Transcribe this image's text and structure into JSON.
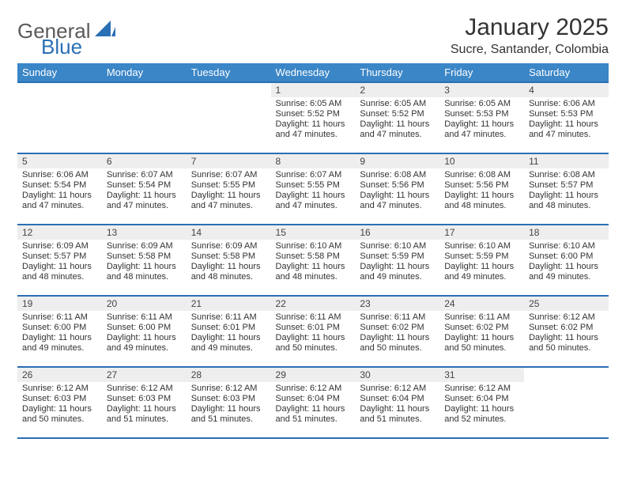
{
  "brand": {
    "part1": "General",
    "part2": "Blue"
  },
  "header": {
    "month_title": "January 2025",
    "location": "Sucre, Santander, Colombia"
  },
  "weekdays": [
    "Sunday",
    "Monday",
    "Tuesday",
    "Wednesday",
    "Thursday",
    "Friday",
    "Saturday"
  ],
  "colors": {
    "header_bg": "#3b86c7",
    "rule": "#2b6fb5",
    "daynum_bg": "#eeeeee",
    "brand_blue": "#2b6fb5",
    "brand_gray": "#5a5a5a"
  },
  "weeks": [
    [
      {
        "n": "",
        "sunrise": "",
        "sunset": "",
        "daylight": ""
      },
      {
        "n": "",
        "sunrise": "",
        "sunset": "",
        "daylight": ""
      },
      {
        "n": "",
        "sunrise": "",
        "sunset": "",
        "daylight": ""
      },
      {
        "n": "1",
        "sunrise": "Sunrise: 6:05 AM",
        "sunset": "Sunset: 5:52 PM",
        "daylight": "Daylight: 11 hours and 47 minutes."
      },
      {
        "n": "2",
        "sunrise": "Sunrise: 6:05 AM",
        "sunset": "Sunset: 5:52 PM",
        "daylight": "Daylight: 11 hours and 47 minutes."
      },
      {
        "n": "3",
        "sunrise": "Sunrise: 6:05 AM",
        "sunset": "Sunset: 5:53 PM",
        "daylight": "Daylight: 11 hours and 47 minutes."
      },
      {
        "n": "4",
        "sunrise": "Sunrise: 6:06 AM",
        "sunset": "Sunset: 5:53 PM",
        "daylight": "Daylight: 11 hours and 47 minutes."
      }
    ],
    [
      {
        "n": "5",
        "sunrise": "Sunrise: 6:06 AM",
        "sunset": "Sunset: 5:54 PM",
        "daylight": "Daylight: 11 hours and 47 minutes."
      },
      {
        "n": "6",
        "sunrise": "Sunrise: 6:07 AM",
        "sunset": "Sunset: 5:54 PM",
        "daylight": "Daylight: 11 hours and 47 minutes."
      },
      {
        "n": "7",
        "sunrise": "Sunrise: 6:07 AM",
        "sunset": "Sunset: 5:55 PM",
        "daylight": "Daylight: 11 hours and 47 minutes."
      },
      {
        "n": "8",
        "sunrise": "Sunrise: 6:07 AM",
        "sunset": "Sunset: 5:55 PM",
        "daylight": "Daylight: 11 hours and 47 minutes."
      },
      {
        "n": "9",
        "sunrise": "Sunrise: 6:08 AM",
        "sunset": "Sunset: 5:56 PM",
        "daylight": "Daylight: 11 hours and 47 minutes."
      },
      {
        "n": "10",
        "sunrise": "Sunrise: 6:08 AM",
        "sunset": "Sunset: 5:56 PM",
        "daylight": "Daylight: 11 hours and 48 minutes."
      },
      {
        "n": "11",
        "sunrise": "Sunrise: 6:08 AM",
        "sunset": "Sunset: 5:57 PM",
        "daylight": "Daylight: 11 hours and 48 minutes."
      }
    ],
    [
      {
        "n": "12",
        "sunrise": "Sunrise: 6:09 AM",
        "sunset": "Sunset: 5:57 PM",
        "daylight": "Daylight: 11 hours and 48 minutes."
      },
      {
        "n": "13",
        "sunrise": "Sunrise: 6:09 AM",
        "sunset": "Sunset: 5:58 PM",
        "daylight": "Daylight: 11 hours and 48 minutes."
      },
      {
        "n": "14",
        "sunrise": "Sunrise: 6:09 AM",
        "sunset": "Sunset: 5:58 PM",
        "daylight": "Daylight: 11 hours and 48 minutes."
      },
      {
        "n": "15",
        "sunrise": "Sunrise: 6:10 AM",
        "sunset": "Sunset: 5:58 PM",
        "daylight": "Daylight: 11 hours and 48 minutes."
      },
      {
        "n": "16",
        "sunrise": "Sunrise: 6:10 AM",
        "sunset": "Sunset: 5:59 PM",
        "daylight": "Daylight: 11 hours and 49 minutes."
      },
      {
        "n": "17",
        "sunrise": "Sunrise: 6:10 AM",
        "sunset": "Sunset: 5:59 PM",
        "daylight": "Daylight: 11 hours and 49 minutes."
      },
      {
        "n": "18",
        "sunrise": "Sunrise: 6:10 AM",
        "sunset": "Sunset: 6:00 PM",
        "daylight": "Daylight: 11 hours and 49 minutes."
      }
    ],
    [
      {
        "n": "19",
        "sunrise": "Sunrise: 6:11 AM",
        "sunset": "Sunset: 6:00 PM",
        "daylight": "Daylight: 11 hours and 49 minutes."
      },
      {
        "n": "20",
        "sunrise": "Sunrise: 6:11 AM",
        "sunset": "Sunset: 6:00 PM",
        "daylight": "Daylight: 11 hours and 49 minutes."
      },
      {
        "n": "21",
        "sunrise": "Sunrise: 6:11 AM",
        "sunset": "Sunset: 6:01 PM",
        "daylight": "Daylight: 11 hours and 49 minutes."
      },
      {
        "n": "22",
        "sunrise": "Sunrise: 6:11 AM",
        "sunset": "Sunset: 6:01 PM",
        "daylight": "Daylight: 11 hours and 50 minutes."
      },
      {
        "n": "23",
        "sunrise": "Sunrise: 6:11 AM",
        "sunset": "Sunset: 6:02 PM",
        "daylight": "Daylight: 11 hours and 50 minutes."
      },
      {
        "n": "24",
        "sunrise": "Sunrise: 6:11 AM",
        "sunset": "Sunset: 6:02 PM",
        "daylight": "Daylight: 11 hours and 50 minutes."
      },
      {
        "n": "25",
        "sunrise": "Sunrise: 6:12 AM",
        "sunset": "Sunset: 6:02 PM",
        "daylight": "Daylight: 11 hours and 50 minutes."
      }
    ],
    [
      {
        "n": "26",
        "sunrise": "Sunrise: 6:12 AM",
        "sunset": "Sunset: 6:03 PM",
        "daylight": "Daylight: 11 hours and 50 minutes."
      },
      {
        "n": "27",
        "sunrise": "Sunrise: 6:12 AM",
        "sunset": "Sunset: 6:03 PM",
        "daylight": "Daylight: 11 hours and 51 minutes."
      },
      {
        "n": "28",
        "sunrise": "Sunrise: 6:12 AM",
        "sunset": "Sunset: 6:03 PM",
        "daylight": "Daylight: 11 hours and 51 minutes."
      },
      {
        "n": "29",
        "sunrise": "Sunrise: 6:12 AM",
        "sunset": "Sunset: 6:04 PM",
        "daylight": "Daylight: 11 hours and 51 minutes."
      },
      {
        "n": "30",
        "sunrise": "Sunrise: 6:12 AM",
        "sunset": "Sunset: 6:04 PM",
        "daylight": "Daylight: 11 hours and 51 minutes."
      },
      {
        "n": "31",
        "sunrise": "Sunrise: 6:12 AM",
        "sunset": "Sunset: 6:04 PM",
        "daylight": "Daylight: 11 hours and 52 minutes."
      },
      {
        "n": "",
        "sunrise": "",
        "sunset": "",
        "daylight": ""
      }
    ]
  ]
}
